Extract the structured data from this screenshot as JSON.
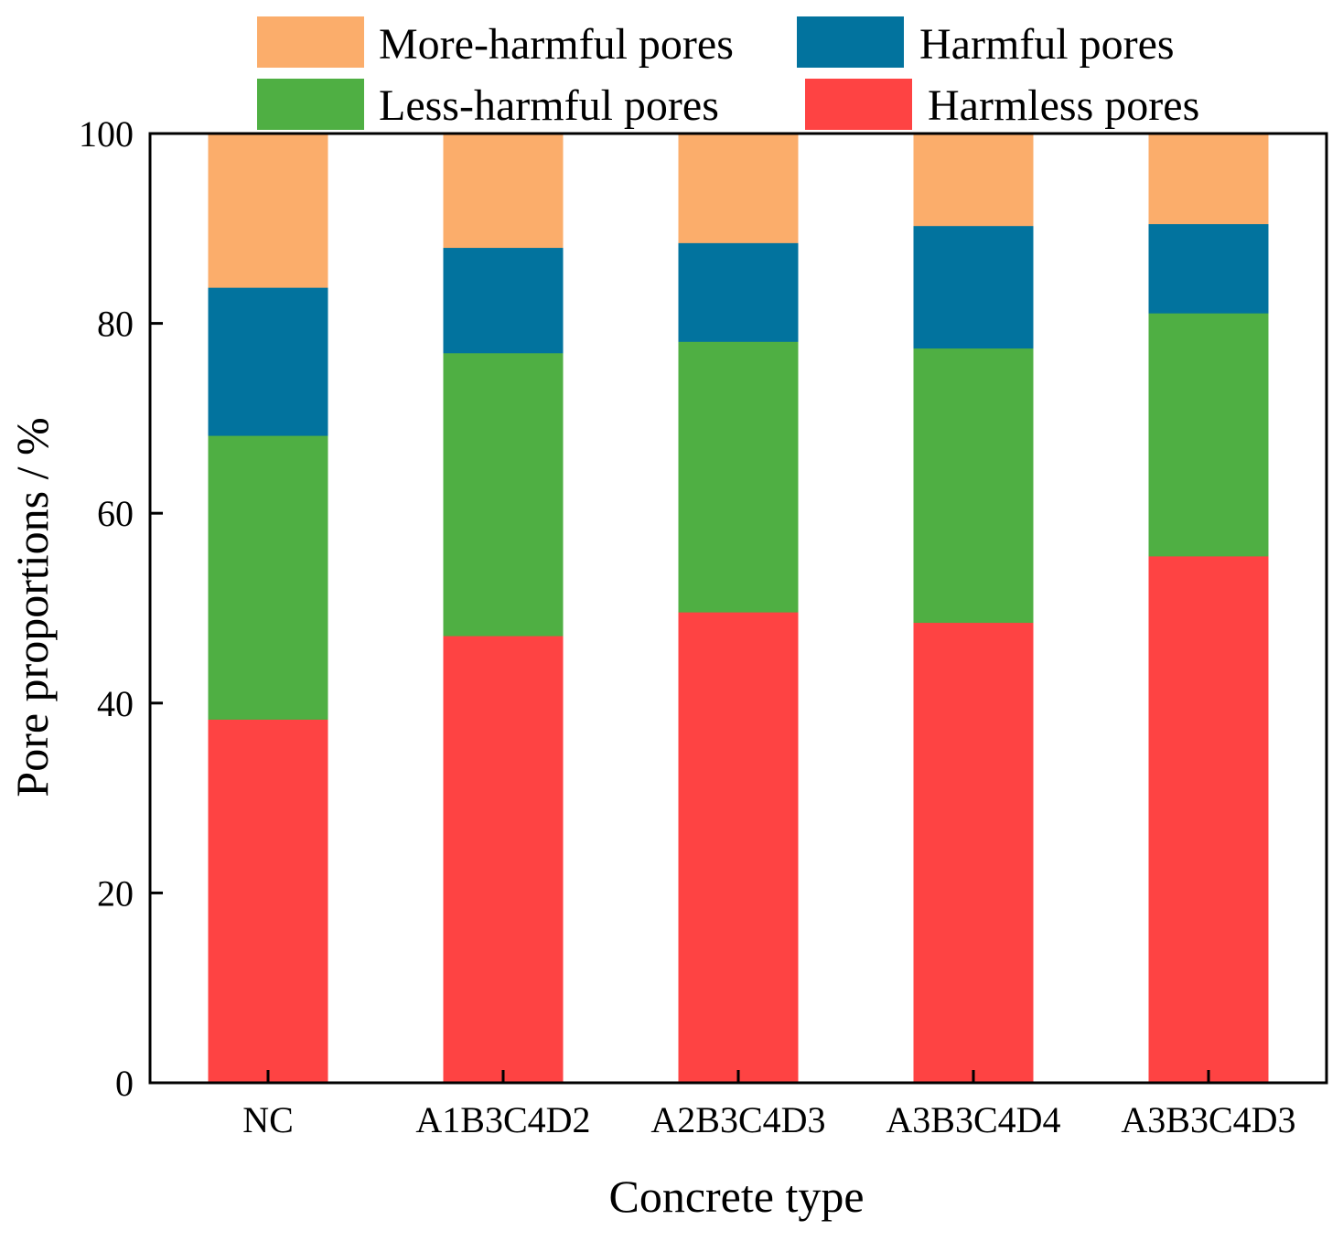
{
  "chart_data": {
    "type": "bar",
    "stacked": true,
    "title": "",
    "xlabel": "Concrete type",
    "ylabel": "Pore proportions / %",
    "ylim": [
      0,
      100
    ],
    "yticks": [
      0,
      20,
      40,
      60,
      80,
      100
    ],
    "categories": [
      "NC",
      "A1B3C4D2",
      "A2B3C4D3",
      "A3B3C4D4",
      "A3B3C4D3"
    ],
    "series": [
      {
        "name": "Harmless pores",
        "color": "#fe4343",
        "values": [
          38.3,
          47.1,
          49.6,
          48.5,
          55.5
        ]
      },
      {
        "name": "Less-harmful pores",
        "color": "#4faf43",
        "values": [
          29.9,
          29.8,
          28.5,
          28.9,
          25.6
        ]
      },
      {
        "name": "Harmful pores",
        "color": "#02739e",
        "values": [
          15.6,
          11.1,
          10.4,
          12.9,
          9.4
        ]
      },
      {
        "name": "More-harmful pores",
        "color": "#fbad6b",
        "values": [
          16.2,
          12.0,
          11.5,
          9.7,
          9.5
        ]
      }
    ],
    "legend": {
      "placement": "top",
      "order": [
        "More-harmful pores",
        "Harmful pores",
        "Less-harmful pores",
        "Harmless pores"
      ]
    },
    "grid": false
  }
}
